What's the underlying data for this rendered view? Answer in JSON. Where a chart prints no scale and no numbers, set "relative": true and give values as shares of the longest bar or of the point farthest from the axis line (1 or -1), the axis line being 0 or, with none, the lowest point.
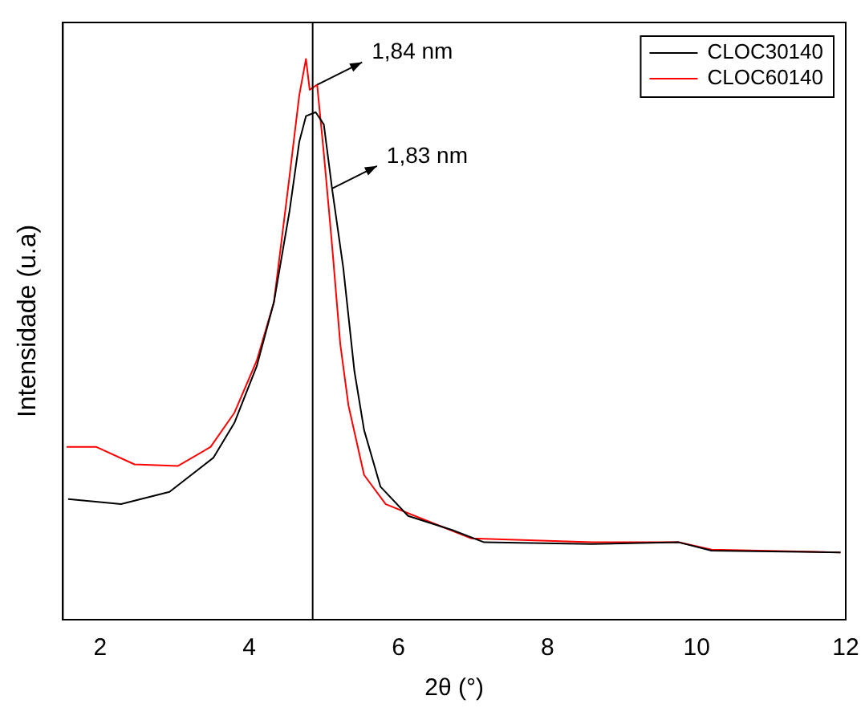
{
  "chart_data": {
    "type": "line",
    "relative": true,
    "xlabel": "2θ (°)",
    "ylabel": "Intensidade (u.a)",
    "xlim": [
      1.5,
      12
    ],
    "xticks": [
      2,
      4,
      6,
      8,
      10,
      12
    ],
    "legend": "top right",
    "grid": false,
    "marker": "none",
    "line_style": "solid",
    "ref_lines": [
      {
        "axis": "x",
        "value": 4.85,
        "color": "#000000"
      }
    ],
    "annotations": [
      {
        "text": "1,84 nm",
        "x": 4.91,
        "y": 0.954
      },
      {
        "text": "1,83 nm",
        "x": 5.11,
        "y": 0.769
      }
    ],
    "series": [
      {
        "name": "CLOC30140",
        "color": "#000000",
        "x": [
          1.57,
          2.28,
          2.93,
          3.52,
          3.8,
          4.1,
          4.33,
          4.54,
          4.67,
          4.76,
          4.89,
          5.0,
          5.11,
          5.26,
          5.41,
          5.54,
          5.76,
          6.13,
          6.72,
          7.15,
          8.59,
          9.76,
          10.2,
          11.93
        ],
        "values": [
          0.215,
          0.206,
          0.228,
          0.289,
          0.351,
          0.452,
          0.566,
          0.729,
          0.852,
          0.898,
          0.905,
          0.883,
          0.769,
          0.628,
          0.443,
          0.338,
          0.237,
          0.185,
          0.16,
          0.138,
          0.135,
          0.138,
          0.123,
          0.12
        ]
      },
      {
        "name": "CLOC60140",
        "color": "#ff0000",
        "x": [
          1.55,
          1.95,
          2.46,
          3.04,
          3.48,
          3.8,
          4.1,
          4.33,
          4.54,
          4.67,
          4.76,
          4.81,
          4.91,
          5.0,
          5.11,
          5.22,
          5.33,
          5.54,
          5.83,
          6.41,
          6.98,
          8.6,
          9.76,
          10.2,
          11.93
        ],
        "values": [
          0.308,
          0.308,
          0.277,
          0.274,
          0.308,
          0.369,
          0.462,
          0.566,
          0.791,
          0.935,
          1,
          0.945,
          0.954,
          0.831,
          0.668,
          0.492,
          0.382,
          0.258,
          0.206,
          0.175,
          0.145,
          0.138,
          0.138,
          0.125,
          0.12
        ]
      }
    ]
  }
}
